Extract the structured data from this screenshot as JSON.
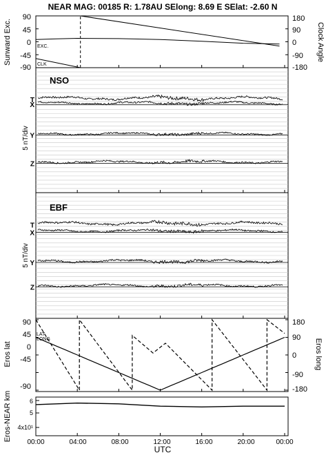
{
  "header": {
    "title": "NEAR MAG: 00185  R: 1.78AU  SElong:    8.69 E  SElat:   -2.60 N"
  },
  "chart_data": [
    {
      "type": "line",
      "ylabel": "Sunward Exc.",
      "ylabel_right": "Clock Angle",
      "ylim": [
        -90,
        90
      ],
      "yticks": [
        "90",
        "45",
        "0",
        "-45",
        "-90"
      ],
      "ylim_right": [
        -180,
        180
      ],
      "yticks_right": [
        "180",
        "90",
        "0",
        "-90",
        "-180"
      ],
      "annotations": [
        "EXC.",
        "CLK"
      ],
      "series": [
        {
          "name": "EXC.",
          "x": [
            0,
            2,
            4,
            8,
            12,
            16,
            20,
            23.5
          ],
          "values": [
            8,
            10,
            12,
            11,
            8,
            2,
            -5,
            -8
          ]
        },
        {
          "name": "CLK",
          "axis": "right",
          "x": [
            0,
            4.3,
            4.3,
            23.5
          ],
          "values": [
            -116,
            -180,
            180,
            -30
          ]
        }
      ]
    },
    {
      "type": "line",
      "label": "NSO",
      "ylabel": "5 nT/div",
      "series": [
        {
          "name": "T",
          "offset": 1.5,
          "amp": 1.2
        },
        {
          "name": "X",
          "offset": 0.2,
          "amp": 1.0
        },
        {
          "name": "Y",
          "offset": -8.0,
          "amp": 0.9
        },
        {
          "name": "Z",
          "offset": -15.5,
          "amp": 1.0
        }
      ]
    },
    {
      "type": "line",
      "label": "EBF",
      "ylabel": "5 nT/div",
      "series": [
        {
          "name": "T",
          "offset": 1.5,
          "amp": 1.2
        },
        {
          "name": "X",
          "offset": -0.5,
          "amp": 1.0
        },
        {
          "name": "Y",
          "offset": -8.5,
          "amp": 1.1
        },
        {
          "name": "Z",
          "offset": -15.0,
          "amp": 1.0
        }
      ]
    },
    {
      "type": "line",
      "ylabel": "Eros lat",
      "ylabel_right": "Eros long",
      "ylim": [
        -90,
        90
      ],
      "yticks": [
        "90",
        "45",
        "0",
        "-45",
        "-90"
      ],
      "ylim_right": [
        -180,
        180
      ],
      "yticks_right": [
        "180",
        "90",
        "0",
        "-90",
        "-180"
      ],
      "annotations": [
        "LAT",
        "LONG"
      ],
      "series": [
        {
          "name": "LAT",
          "x": [
            0,
            12,
            24
          ],
          "values": [
            45,
            -90,
            45
          ]
        },
        {
          "name": "LONG",
          "axis": "right",
          "x": [
            0,
            4.2,
            4.2,
            9.3,
            9.3,
            11.3,
            12.5,
            17.0,
            17.0,
            22.3,
            22.3,
            24
          ],
          "values": [
            180,
            -180,
            180,
            -180,
            100,
            10,
            60,
            -180,
            180,
            -180,
            180,
            110
          ]
        }
      ]
    },
    {
      "type": "line",
      "ylabel": "Eros-NEAR km",
      "yscale": "log",
      "yticks": [
        "6",
        "5",
        "4x10¹"
      ],
      "series": [
        {
          "name": "range",
          "x": [
            0,
            4,
            8,
            12,
            16,
            20,
            24
          ],
          "values": [
            52,
            53,
            52.5,
            51,
            50.5,
            51,
            51
          ]
        }
      ]
    }
  ],
  "xaxis": {
    "label": "UTC",
    "ticks": [
      "00:00",
      "04:00",
      "08:00",
      "12:00",
      "16:00",
      "20:00",
      "00:00"
    ]
  }
}
